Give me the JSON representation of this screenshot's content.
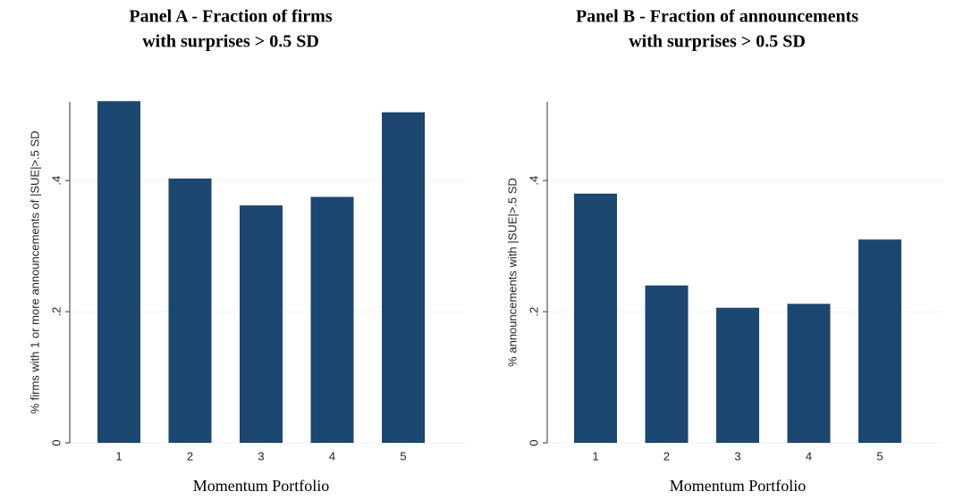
{
  "chart_data": [
    {
      "type": "bar",
      "title": [
        "Panel A - Fraction of firms",
        "with surprises > 0.5 SD"
      ],
      "y_label": "% firms with 1 or more announcements of |SUE|>.5 SD",
      "x_label": "Momentum Portfolio",
      "categories": [
        "1",
        "2",
        "3",
        "4",
        "5"
      ],
      "values": [
        0.521,
        0.403,
        0.362,
        0.375,
        0.504
      ],
      "color": "#1c4770",
      "ylim": [
        0,
        0.52
      ],
      "yticks": [
        0,
        {
          "value": 0.2,
          "label": ".2"
        },
        {
          "value": 0.4,
          "label": ".4"
        }
      ],
      "grid": true
    },
    {
      "type": "bar",
      "title": [
        "Panel B - Fraction of announcements",
        "with surprises > 0.5 SD"
      ],
      "y_label": "% announcements with |SUE|>.5 SD",
      "x_label": "Momentum Portfolio",
      "categories": [
        "1",
        "2",
        "3",
        "4",
        "5"
      ],
      "values": [
        0.38,
        0.24,
        0.206,
        0.212,
        0.31
      ],
      "color": "#1c4770",
      "ylim": [
        0,
        0.52
      ],
      "yticks": [
        0,
        {
          "value": 0.2,
          "label": ".2"
        },
        {
          "value": 0.4,
          "label": ".4"
        }
      ],
      "grid": true
    }
  ]
}
